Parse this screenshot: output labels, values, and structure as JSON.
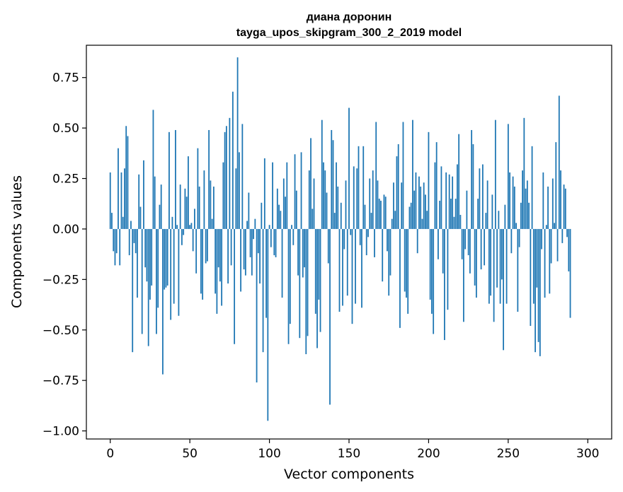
{
  "chart_data": {
    "type": "bar",
    "title_line1": "диана доронин",
    "title_line2": "tayga_upos_skipgram_300_2_2019 model",
    "xlabel": "Vector components",
    "ylabel": "Components values",
    "xlim": [
      -15,
      315
    ],
    "ylim": [
      -1.04,
      0.91
    ],
    "xticks": [
      0,
      50,
      100,
      150,
      200,
      250,
      300
    ],
    "yticks": [
      0.75,
      0.5,
      0.25,
      0.0,
      -0.25,
      -0.5,
      -0.75,
      -1.0
    ],
    "ytick_labels": [
      "0.75",
      "0.50",
      "0.25",
      "0.00",
      "−0.25",
      "−0.50",
      "−0.75",
      "−1.00"
    ],
    "grid": false,
    "bar_color": "#1f77b4",
    "values": [
      0.28,
      0.08,
      -0.11,
      -0.18,
      -0.12,
      0.4,
      -0.18,
      0.28,
      0.06,
      0.3,
      0.51,
      0.46,
      -0.13,
      0.04,
      -0.61,
      -0.07,
      -0.12,
      -0.34,
      0.27,
      0.11,
      -0.52,
      0.34,
      -0.19,
      -0.26,
      -0.58,
      -0.35,
      -0.28,
      0.59,
      0.26,
      -0.52,
      -0.39,
      0.12,
      0.22,
      -0.72,
      -0.3,
      -0.29,
      -0.28,
      0.48,
      -0.45,
      0.06,
      -0.37,
      0.49,
      0.02,
      -0.43,
      0.22,
      -0.08,
      -0.03,
      0.2,
      0.16,
      0.36,
      0.02,
      0.03,
      -0.11,
      0.1,
      -0.22,
      0.4,
      0.21,
      -0.32,
      -0.35,
      0.29,
      -0.17,
      -0.16,
      0.49,
      0.24,
      0.05,
      0.21,
      -0.32,
      -0.42,
      -0.19,
      -0.26,
      -0.38,
      0.33,
      0.48,
      0.51,
      -0.27,
      0.55,
      -0.18,
      0.68,
      -0.57,
      0.3,
      0.85,
      0.38,
      -0.31,
      0.52,
      -0.2,
      -0.23,
      0.04,
      0.18,
      -0.14,
      -0.23,
      -0.05,
      0.05,
      -0.76,
      -0.12,
      -0.27,
      0.13,
      -0.61,
      0.35,
      -0.44,
      -0.95,
      0.02,
      -0.09,
      0.33,
      -0.13,
      -0.14,
      0.2,
      0.12,
      0.09,
      -0.34,
      0.25,
      0.16,
      0.33,
      -0.57,
      -0.47,
      0.02,
      -0.08,
      0.37,
      0.19,
      -0.23,
      -0.54,
      0.38,
      -0.24,
      -0.19,
      -0.62,
      -0.53,
      0.29,
      0.45,
      0.1,
      0.25,
      -0.42,
      -0.59,
      -0.35,
      -0.51,
      0.54,
      0.33,
      0.29,
      0.18,
      -0.17,
      -0.87,
      0.49,
      0.44,
      0.08,
      0.33,
      0.21,
      -0.41,
      0.13,
      -0.38,
      -0.1,
      0.24,
      -0.33,
      0.6,
      -0.03,
      -0.47,
      0.31,
      -0.37,
      0.3,
      0.41,
      -0.08,
      -0.39,
      0.41,
      0.12,
      -0.13,
      -0.04,
      0.25,
      0.08,
      0.29,
      -0.14,
      0.53,
      0.24,
      0.15,
      0.14,
      -0.26,
      0.17,
      0.16,
      -0.11,
      -0.33,
      -0.23,
      0.05,
      0.23,
      0.09,
      0.36,
      0.42,
      -0.49,
      0.23,
      0.53,
      -0.31,
      -0.34,
      -0.42,
      0.11,
      0.13,
      0.54,
      0.19,
      0.28,
      -0.12,
      0.26,
      0.21,
      0.05,
      0.23,
      0.17,
      0.09,
      0.48,
      -0.35,
      -0.42,
      -0.52,
      0.33,
      0.43,
      -0.15,
      0.14,
      0.31,
      -0.22,
      -0.55,
      0.28,
      -0.4,
      0.27,
      0.15,
      0.26,
      0.06,
      0.15,
      0.32,
      0.47,
      0.07,
      -0.15,
      -0.46,
      -0.1,
      0.19,
      -0.13,
      -0.22,
      0.49,
      0.42,
      -0.28,
      -0.34,
      0.15,
      0.3,
      -0.2,
      0.32,
      -0.18,
      0.08,
      0.24,
      -0.37,
      -0.33,
      0.17,
      -0.46,
      0.54,
      -0.29,
      0.09,
      -0.37,
      -0.25,
      -0.6,
      0.12,
      -0.37,
      0.52,
      0.28,
      -0.12,
      0.26,
      0.21,
      0.03,
      -0.41,
      -0.09,
      0.13,
      0.29,
      0.55,
      0.2,
      0.24,
      0.13,
      -0.48,
      0.41,
      -0.37,
      -0.61,
      -0.29,
      -0.56,
      -0.63,
      -0.1,
      0.28,
      -0.34,
      0.02,
      0.21,
      -0.32,
      -0.17,
      0.25,
      0.03,
      0.43,
      -0.16,
      0.66,
      0.29,
      -0.07,
      0.22,
      0.2,
      -0.04,
      -0.21,
      -0.44
    ]
  }
}
